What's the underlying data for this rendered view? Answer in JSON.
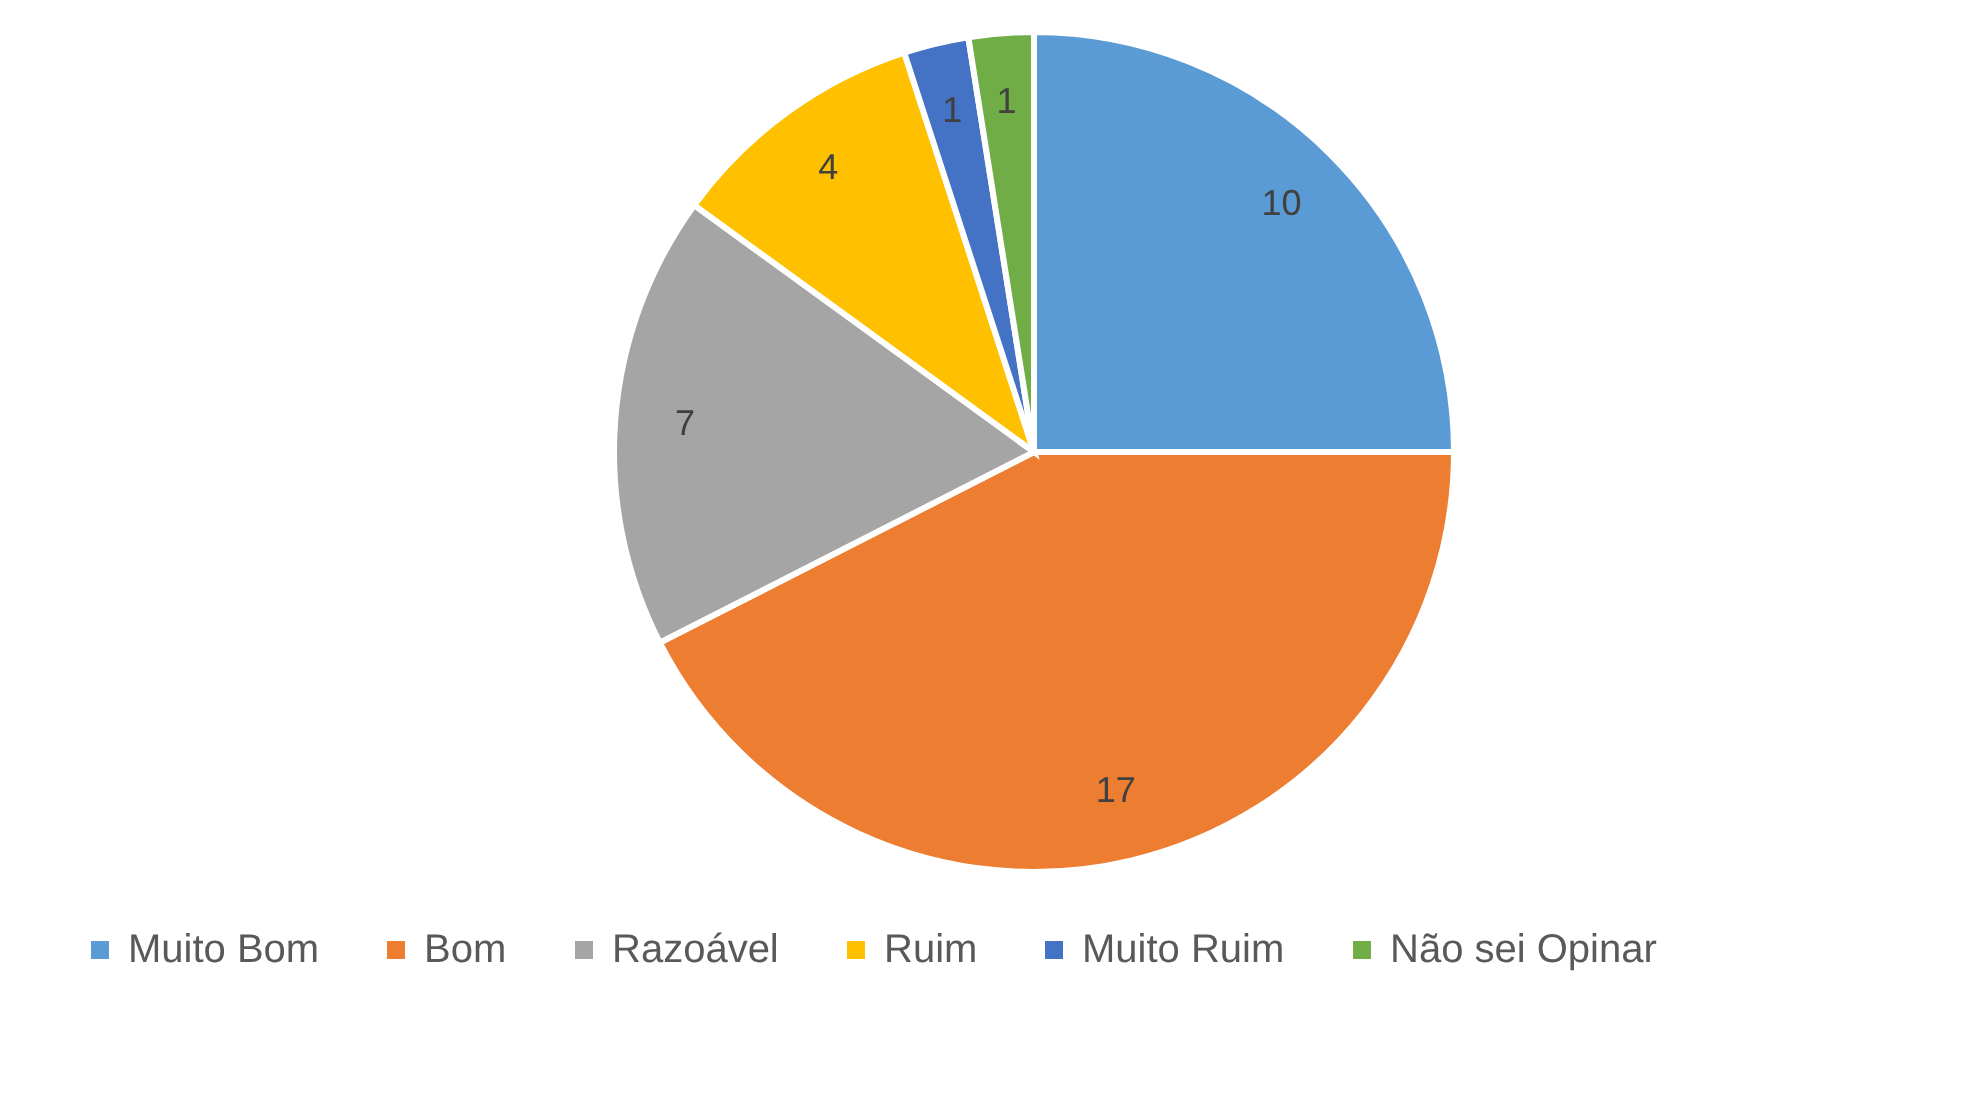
{
  "chart_data": {
    "type": "pie",
    "categories": [
      "Muito Bom",
      "Bom",
      "Razoável",
      "Ruim",
      "Muito Ruim",
      "Não sei Opinar"
    ],
    "values": [
      10,
      17,
      7,
      4,
      1,
      1
    ],
    "colors": [
      "#5b9bd5",
      "#ed7d31",
      "#a5a5a5",
      "#ffc000",
      "#4472c4",
      "#70ad47"
    ],
    "data_labels": true,
    "legend": "bottom"
  }
}
